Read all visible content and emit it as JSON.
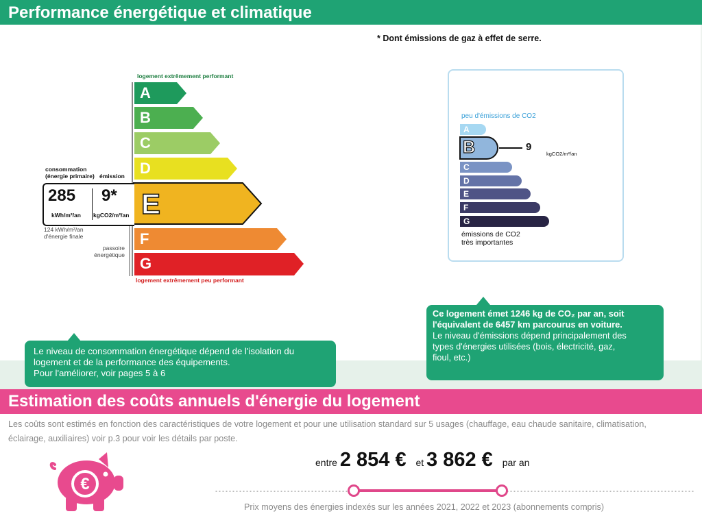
{
  "header": {
    "title": "Performance énergétique et climatique"
  },
  "footnote": "* Dont émissions de gaz à effet de serre.",
  "dpe": {
    "top_caption": "logement extrêmement performant",
    "bottom_caption": "logement extrêmement peu performant",
    "consumption_label_1": "consommation",
    "consumption_label_2": "(énergie primaire)",
    "emission_label": "émission",
    "consumption_value": "285",
    "consumption_unit": "kWh/m²/an",
    "emission_value": "9*",
    "emission_unit": "kgCO2/m²/an",
    "final_energy_1": "124 kWh/m²/an",
    "final_energy_2": "d'énergie finale",
    "passoire_1": "passoire",
    "passoire_2": "énergétique",
    "current_class": "E",
    "classes": [
      {
        "letter": "A",
        "color": "#1e9a5c"
      },
      {
        "letter": "B",
        "color": "#4caf50"
      },
      {
        "letter": "C",
        "color": "#9ccc65"
      },
      {
        "letter": "D",
        "color": "#e8e020"
      },
      {
        "letter": "E",
        "color": "#f0b420"
      },
      {
        "letter": "F",
        "color": "#ee8a33"
      },
      {
        "letter": "G",
        "color": "#e02126"
      }
    ]
  },
  "co2": {
    "top_caption": "peu d'émissions de CO2",
    "bottom_caption_1": "émissions de CO2",
    "bottom_caption_2": "très importantes",
    "current_class": "B",
    "value": "9",
    "unit": "kgCO2/m²/an",
    "classes": [
      {
        "letter": "A",
        "color": "#a6d8f2"
      },
      {
        "letter": "B",
        "color": "#91b6dc"
      },
      {
        "letter": "C",
        "color": "#7a93c4"
      },
      {
        "letter": "D",
        "color": "#6473a7"
      },
      {
        "letter": "E",
        "color": "#4f5486"
      },
      {
        "letter": "F",
        "color": "#3b3a65"
      },
      {
        "letter": "G",
        "color": "#282444"
      }
    ]
  },
  "callout_left": {
    "line1": "Le niveau de consommation énergétique dépend de l'isolation du",
    "line2": "logement et de la performance des équipements.",
    "line3": "Pour l'améliorer, voir pages 5 à 6"
  },
  "callout_right": {
    "bold1": "Ce logement émet 1246  kg de CO₂ par an, soit",
    "bold2": "l'équivalent de 6457 km parcourus en voiture.",
    "line3": "Le niveau d'émissions dépend principalement des",
    "line4": "types d'énergies utilisées (bois, électricité, gaz,",
    "line5": "fioul, etc.)"
  },
  "costs": {
    "title": "Estimation des coûts annuels d'énergie du logement",
    "desc_line1": "Les coûts sont estimés en fonction des caractéristiques de votre logement et pour une utilisation standard sur 5 usages (chauffage, eau chaude sanitaire, climatisation,",
    "desc_line2": "éclairage, auxiliaires) voir p.3 pour voir les détails par poste.",
    "prefix": "entre",
    "min": "2 854 €",
    "connector": "et",
    "max": "3 862 €",
    "suffix": "par an",
    "note": "Prix moyens des énergies indexés sur les années 2021, 2022 et 2023  (abonnements compris)",
    "accent": "#e84a8e"
  }
}
